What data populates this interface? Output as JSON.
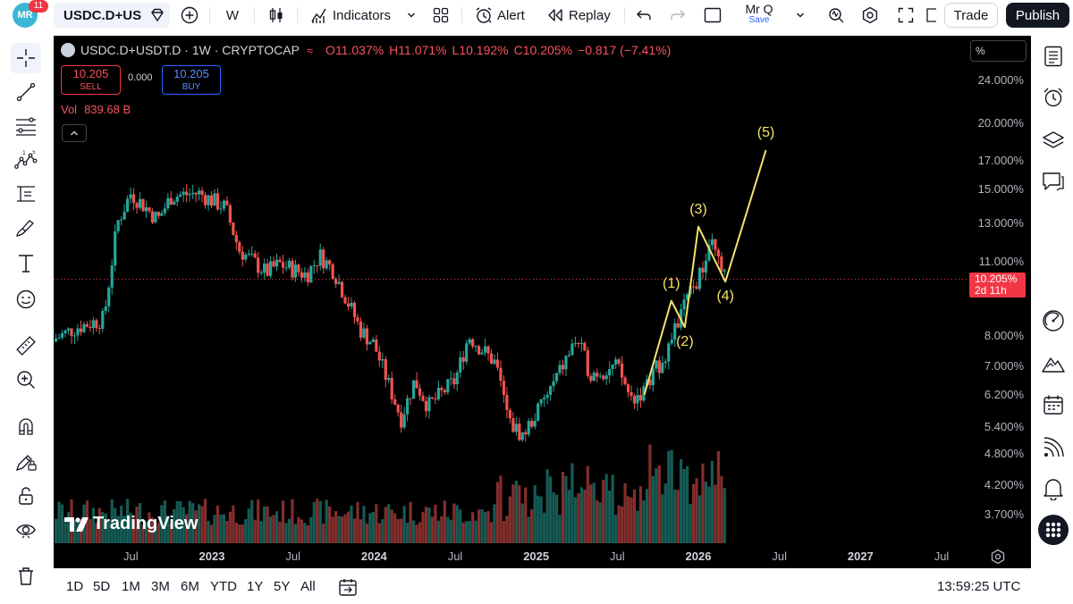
{
  "user": {
    "initials": "MR",
    "notifications": "11",
    "name": "Mr Q",
    "save_label": "Save"
  },
  "toolbar": {
    "symbol": "USDC.D+USDT.D",
    "interval": "W",
    "indicators_label": "Indicators",
    "alert_label": "Alert",
    "replay_label": "Replay",
    "trade_label": "Trade",
    "publish_label": "Publish"
  },
  "legend": {
    "title": "USDC.D+USDT.D · 1W · CRYPTOCAP",
    "open_label": "O",
    "open": "11.037%",
    "high_label": "H",
    "high": "11.071%",
    "low_label": "L",
    "low": "10.192%",
    "close_label": "C",
    "close": "10.205%",
    "change": "−0.817 (−7.41%)",
    "sell_price": "10.205",
    "sell_label": "SELL",
    "spread": "0.000",
    "buy_price": "10.205",
    "buy_label": "BUY",
    "vol_label": "Vol",
    "vol_value": "839.68 B"
  },
  "price_scale": {
    "unit_label": "%"
  },
  "price_tag": {
    "price": "10.205%",
    "countdown": "2d 11h"
  },
  "watermark": "TradingView",
  "bottom": {
    "ranges": [
      "1D",
      "5D",
      "1M",
      "3M",
      "6M",
      "YTD",
      "1Y",
      "5Y",
      "All"
    ],
    "clock": "13:59:25 UTC"
  },
  "colors": {
    "up": "#26a69a",
    "down": "#ef5350",
    "wave": "#f5e36a",
    "background": "#000000",
    "accent": "#2962ff"
  },
  "icons": {
    "left": [
      "crosshair-icon",
      "trend-line-icon",
      "fib-retracement-icon",
      "elliott-wave-icon",
      "long-position-icon",
      "brush-icon",
      "text-icon",
      "emoji-icon",
      "ruler-icon",
      "zoom-in-icon",
      "magnet-icon",
      "lock-drawing-icon",
      "lock-icon",
      "eye-icon",
      "trash-icon"
    ],
    "right": [
      "watchlist-icon",
      "alarm-clock-icon",
      "layers-icon",
      "chat-icon",
      "hotlist-icon",
      "ideas-icon",
      "calendar-icon",
      "broadcast-icon",
      "bell-icon",
      "apps-grid-icon"
    ]
  },
  "chart_data": {
    "type": "candlestick",
    "symbol": "USDC.D+USDT.D",
    "interval": "1W",
    "source": "CRYPTOCAP",
    "y_scale": "log",
    "y_ticks": [
      3.7,
      4.2,
      4.8,
      5.4,
      6.2,
      7.0,
      8.0,
      11.0,
      13.0,
      15.0,
      17.0,
      20.0,
      24.0
    ],
    "y_tick_labels": [
      "3.700%",
      "4.200%",
      "4.800%",
      "5.400%",
      "6.200%",
      "7.000%",
      "8.000%",
      "11.000%",
      "13.000%",
      "15.000%",
      "17.000%",
      "20.000%",
      "24.000%"
    ],
    "x_tick_labels": [
      "Jul",
      "2023",
      "Jul",
      "2024",
      "Jul",
      "2025",
      "Jul",
      "2026",
      "Jul",
      "2027",
      "Jul"
    ],
    "x_tick_bold": [
      false,
      true,
      false,
      true,
      false,
      true,
      false,
      true,
      false,
      true,
      false
    ],
    "x_tick_dates": [
      "2022-07",
      "2023-01",
      "2023-07",
      "2024-01",
      "2024-07",
      "2025-01",
      "2025-07",
      "2026-01",
      "2026-07",
      "2027-01",
      "2027-07"
    ],
    "trend_points": [
      {
        "date": "2022-01",
        "value": 7.8
      },
      {
        "date": "2022-03",
        "value": 8.3
      },
      {
        "date": "2022-05",
        "value": 8.6
      },
      {
        "date": "2022-06",
        "value": 13.0
      },
      {
        "date": "2022-07",
        "value": 14.8
      },
      {
        "date": "2022-09",
        "value": 13.2
      },
      {
        "date": "2022-10",
        "value": 14.6
      },
      {
        "date": "2022-12",
        "value": 14.8
      },
      {
        "date": "2023-02",
        "value": 13.9
      },
      {
        "date": "2023-03",
        "value": 11.6
      },
      {
        "date": "2023-05",
        "value": 10.5
      },
      {
        "date": "2023-06",
        "value": 10.9
      },
      {
        "date": "2023-08",
        "value": 10.4
      },
      {
        "date": "2023-09",
        "value": 11.3
      },
      {
        "date": "2023-10",
        "value": 10.6
      },
      {
        "date": "2023-12",
        "value": 8.2
      },
      {
        "date": "2024-01",
        "value": 7.7
      },
      {
        "date": "2024-03",
        "value": 5.6
      },
      {
        "date": "2024-04",
        "value": 6.6
      },
      {
        "date": "2024-05",
        "value": 5.9
      },
      {
        "date": "2024-07",
        "value": 6.6
      },
      {
        "date": "2024-08",
        "value": 8.0
      },
      {
        "date": "2024-10",
        "value": 7.1
      },
      {
        "date": "2024-11",
        "value": 5.5
      },
      {
        "date": "2024-12",
        "value": 5.2
      },
      {
        "date": "2025-02",
        "value": 6.3
      },
      {
        "date": "2025-04",
        "value": 7.9
      },
      {
        "date": "2025-05",
        "value": 6.8
      },
      {
        "date": "2025-07",
        "value": 7.0
      },
      {
        "date": "2025-08",
        "value": 6.1
      },
      {
        "date": "2025-09",
        "value": 6.3
      },
      {
        "date": "2025-11",
        "value": 7.8
      },
      {
        "date": "2025-12",
        "value": 9.2
      },
      {
        "date": "2026-01",
        "value": 10.2
      },
      {
        "date": "2026-02",
        "value": 11.8
      },
      {
        "date": "2026-03",
        "value": 10.205
      }
    ],
    "elliott_waves": [
      {
        "label": "",
        "date": "2025-09",
        "value": 6.2
      },
      {
        "label": "(1)",
        "date": "2025-11",
        "value": 9.3
      },
      {
        "label": "(2)",
        "date": "2025-12",
        "value": 8.3
      },
      {
        "label": "(3)",
        "date": "2026-01",
        "value": 12.8
      },
      {
        "label": "(4)",
        "date": "2026-03",
        "value": 10.1
      },
      {
        "label": "(5)",
        "date": "2026-06",
        "value": 17.8
      }
    ],
    "last_price": 10.205
  }
}
